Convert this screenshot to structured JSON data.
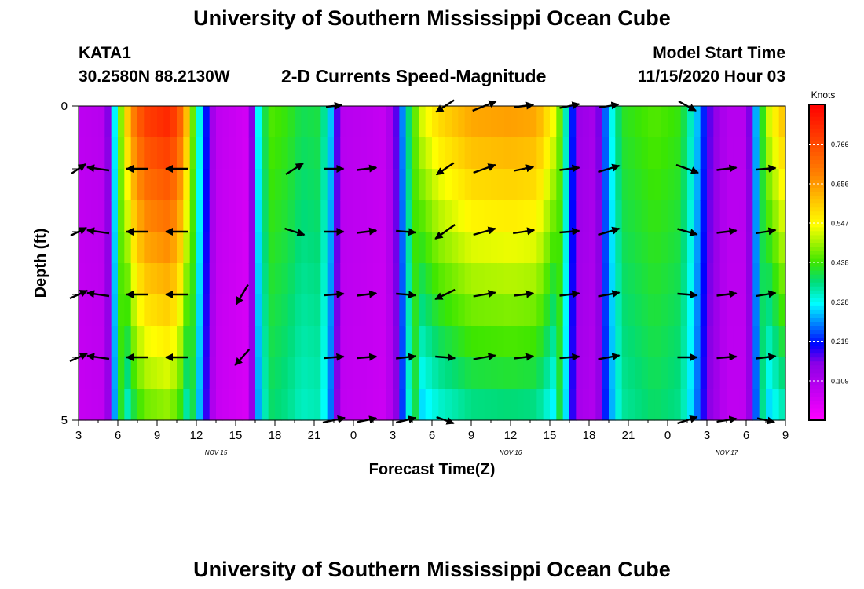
{
  "title": "University of Southern Mississippi Ocean Cube",
  "footer_title": "University of Southern Mississippi Ocean Cube",
  "station": {
    "id": "KATA1",
    "coords": "30.2580N 88.2130W"
  },
  "subtitle": "2-D Currents Speed-Magnitude",
  "model": {
    "label": "Model Start Time",
    "value": "11/15/2020 Hour 03"
  },
  "chart_data": {
    "type": "heatmap",
    "title": "2-D Currents Speed-Magnitude",
    "xlabel": "Forecast Time(Z)",
    "ylabel": "Depth (ft)",
    "units_label": "Knots",
    "x_range_hours": [
      0,
      54
    ],
    "ylim": [
      0,
      5
    ],
    "y_ticks": [
      "0",
      "5"
    ],
    "x_ticks": [
      "3",
      "6",
      "9",
      "12",
      "15",
      "18",
      "21",
      "0",
      "3",
      "6",
      "9",
      "12",
      "15",
      "18",
      "21",
      "0",
      "3",
      "6",
      "9"
    ],
    "date_labels": [
      {
        "text": "NOV 15",
        "hour": 10.5
      },
      {
        "text": "NOV 16",
        "hour": 33
      },
      {
        "text": "NOV 17",
        "hour": 49.5
      }
    ],
    "colorbar_ticks": [
      "0.109",
      "0.219",
      "0.328",
      "0.438",
      "0.547",
      "0.656",
      "0.766"
    ],
    "colorbar_range": [
      0,
      0.876
    ],
    "speed_profile": [
      {
        "hour": 0,
        "speed": 0.09
      },
      {
        "hour": 2,
        "speed": 0.1
      },
      {
        "hour": 2.5,
        "speed": 0.22
      },
      {
        "hour": 3,
        "speed": 0.42
      },
      {
        "hour": 4,
        "speed": 0.66
      },
      {
        "hour": 5,
        "speed": 0.78
      },
      {
        "hour": 7,
        "speed": 0.82
      },
      {
        "hour": 8,
        "speed": 0.7
      },
      {
        "hour": 8.6,
        "speed": 0.5
      },
      {
        "hour": 9.3,
        "speed": 0.32
      },
      {
        "hour": 10,
        "speed": 0.16
      },
      {
        "hour": 10.5,
        "speed": 0.09
      },
      {
        "hour": 13,
        "speed": 0.06
      },
      {
        "hour": 13.6,
        "speed": 0.3
      },
      {
        "hour": 14.5,
        "speed": 0.45
      },
      {
        "hour": 16,
        "speed": 0.43
      },
      {
        "hour": 17,
        "speed": 0.4
      },
      {
        "hour": 18.5,
        "speed": 0.41
      },
      {
        "hour": 19.5,
        "speed": 0.26
      },
      {
        "hour": 20,
        "speed": 0.1
      },
      {
        "hour": 23.5,
        "speed": 0.08
      },
      {
        "hour": 24.5,
        "speed": 0.21
      },
      {
        "hour": 25.3,
        "speed": 0.4
      },
      {
        "hour": 26.2,
        "speed": 0.52
      },
      {
        "hour": 27.5,
        "speed": 0.58
      },
      {
        "hour": 30,
        "speed": 0.64
      },
      {
        "hour": 33,
        "speed": 0.65
      },
      {
        "hour": 35,
        "speed": 0.64
      },
      {
        "hour": 36.5,
        "speed": 0.52
      },
      {
        "hour": 37.5,
        "speed": 0.3
      },
      {
        "hour": 38,
        "speed": 0.14
      },
      {
        "hour": 39.5,
        "speed": 0.12
      },
      {
        "hour": 40.5,
        "speed": 0.3
      },
      {
        "hour": 41.5,
        "speed": 0.42
      },
      {
        "hour": 44,
        "speed": 0.45
      },
      {
        "hour": 46,
        "speed": 0.43
      },
      {
        "hour": 47,
        "speed": 0.33
      },
      {
        "hour": 48,
        "speed": 0.19
      },
      {
        "hour": 49.5,
        "speed": 0.1
      },
      {
        "hour": 51,
        "speed": 0.1
      },
      {
        "hour": 51.8,
        "speed": 0.3
      },
      {
        "hour": 52.5,
        "speed": 0.5
      },
      {
        "hour": 54,
        "speed": 0.62
      }
    ],
    "vector_columns_hours": [
      0,
      1.5,
      4.5,
      7.5,
      12.5,
      16.5,
      19.5,
      22,
      25,
      28,
      31,
      34,
      37.5,
      40.5,
      43.5,
      46.5,
      49.5,
      52.5
    ],
    "vector_rows_depth": [
      0,
      1,
      2,
      3,
      4,
      5
    ],
    "vectors": [
      [
        [
          0,
          0
        ],
        [
          0,
          0
        ],
        [
          0,
          0
        ],
        [
          0,
          0
        ],
        [
          0,
          0
        ],
        [
          0,
          0
        ],
        [
          20,
          -2
        ],
        [
          0,
          0
        ],
        [
          0,
          0
        ],
        [
          -23,
          15
        ],
        [
          30,
          -12
        ],
        [
          25,
          -3
        ],
        [
          25,
          -5
        ],
        [
          25,
          -4
        ],
        [
          0,
          0
        ],
        [
          22,
          12
        ],
        [
          0,
          0
        ],
        [
          0,
          0
        ]
      ],
      [
        [
          18,
          -12
        ],
        [
          -28,
          -4
        ],
        [
          -28,
          0
        ],
        [
          -28,
          0
        ],
        [
          0,
          0
        ],
        [
          22,
          -14
        ],
        [
          25,
          0
        ],
        [
          25,
          -3
        ],
        [
          0,
          0
        ],
        [
          -22,
          15
        ],
        [
          28,
          -10
        ],
        [
          25,
          -5
        ],
        [
          25,
          -3
        ],
        [
          27,
          -8
        ],
        [
          0,
          0
        ],
        [
          28,
          10
        ],
        [
          25,
          -3
        ],
        [
          25,
          -2
        ]
      ],
      [
        [
          20,
          -10
        ],
        [
          -28,
          -4
        ],
        [
          -28,
          0
        ],
        [
          -28,
          0
        ],
        [
          0,
          0
        ],
        [
          25,
          8
        ],
        [
          25,
          0
        ],
        [
          25,
          -3
        ],
        [
          25,
          2
        ],
        [
          -25,
          18
        ],
        [
          28,
          -8
        ],
        [
          27,
          -4
        ],
        [
          25,
          -2
        ],
        [
          27,
          -8
        ],
        [
          0,
          0
        ],
        [
          25,
          7
        ],
        [
          25,
          -3
        ],
        [
          25,
          -4
        ]
      ],
      [
        [
          22,
          -10
        ],
        [
          -28,
          -4
        ],
        [
          -28,
          0
        ],
        [
          -28,
          0
        ],
        [
          -15,
          25
        ],
        [
          0,
          0
        ],
        [
          25,
          -2
        ],
        [
          25,
          -3
        ],
        [
          25,
          2
        ],
        [
          -25,
          12
        ],
        [
          28,
          -5
        ],
        [
          25,
          -3
        ],
        [
          25,
          -3
        ],
        [
          27,
          -5
        ],
        [
          0,
          0
        ],
        [
          25,
          2
        ],
        [
          25,
          -3
        ],
        [
          25,
          -4
        ]
      ],
      [
        [
          22,
          -10
        ],
        [
          -28,
          -4
        ],
        [
          -28,
          0
        ],
        [
          -28,
          0
        ],
        [
          -18,
          20
        ],
        [
          0,
          0
        ],
        [
          25,
          -2
        ],
        [
          25,
          -2
        ],
        [
          25,
          -3
        ],
        [
          25,
          2
        ],
        [
          28,
          -5
        ],
        [
          25,
          -3
        ],
        [
          25,
          -2
        ],
        [
          27,
          -5
        ],
        [
          0,
          0
        ],
        [
          25,
          0
        ],
        [
          25,
          -2
        ],
        [
          25,
          -3
        ]
      ],
      [
        [
          0,
          0
        ],
        [
          0,
          0
        ],
        [
          0,
          0
        ],
        [
          0,
          0
        ],
        [
          0,
          0
        ],
        [
          0,
          0
        ],
        [
          28,
          -6
        ],
        [
          25,
          -5
        ],
        [
          25,
          -6
        ],
        [
          22,
          8
        ],
        [
          0,
          0
        ],
        [
          0,
          0
        ],
        [
          0,
          0
        ],
        [
          0,
          0
        ],
        [
          0,
          0
        ],
        [
          25,
          -8
        ],
        [
          25,
          -4
        ],
        [
          22,
          5
        ]
      ]
    ]
  }
}
